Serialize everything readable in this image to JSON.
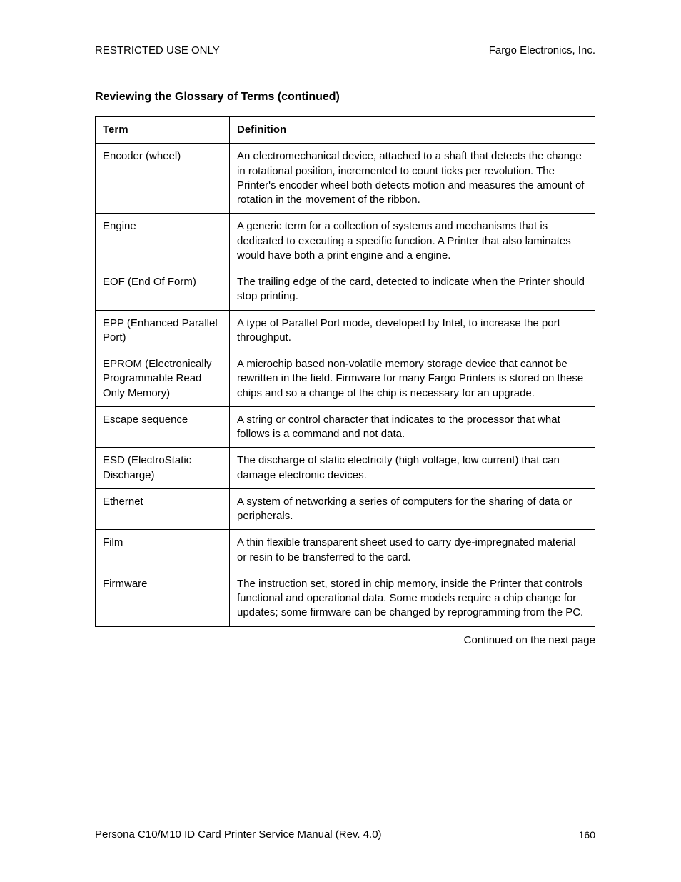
{
  "header": {
    "left": "RESTRICTED USE ONLY",
    "right": "Fargo Electronics, Inc."
  },
  "section_title": "Reviewing the Glossary of Terms (continued)",
  "table": {
    "columns": [
      "Term",
      "Definition"
    ],
    "rows": [
      {
        "term": "Encoder (wheel)",
        "definition": "An electromechanical device, attached to a shaft that detects the change in rotational position, incremented to count ticks per revolution. The Printer's encoder wheel both detects motion and measures the amount of rotation in the movement of the ribbon."
      },
      {
        "term": "Engine",
        "definition": "A generic term for a collection of systems and mechanisms that is dedicated to executing a specific function. A Printer that also laminates would have both a print engine and a engine."
      },
      {
        "term": "EOF (End Of Form)",
        "definition": "The trailing edge of the card, detected to indicate when the Printer should stop printing."
      },
      {
        "term": "EPP (Enhanced Parallel Port)",
        "definition": "A type of Parallel Port mode, developed by Intel, to increase the port throughput."
      },
      {
        "term": "EPROM (Electronically Programmable Read Only Memory)",
        "definition": "A microchip based non-volatile memory storage device that cannot be rewritten in the field. Firmware for many Fargo Printers is stored on these chips and so a change of the chip is necessary for an upgrade."
      },
      {
        "term": "Escape sequence",
        "definition": "A string or control character that indicates to the processor that what follows is a command and not data."
      },
      {
        "term": "ESD (ElectroStatic Discharge)",
        "definition": "The discharge of static electricity (high voltage, low current) that can damage electronic devices."
      },
      {
        "term": "Ethernet",
        "definition": "A system of networking a series of computers for the sharing of data or peripherals."
      },
      {
        "term": "Film",
        "definition": "A thin flexible transparent sheet used to carry dye-impregnated material or resin to be transferred to the card."
      },
      {
        "term": "Firmware",
        "definition": "The instruction set, stored in chip memory, inside the Printer that controls functional and operational data. Some models require a chip change for updates; some firmware can be changed by reprogramming from the PC."
      }
    ]
  },
  "continuation_text": "Continued on the next page",
  "footer": {
    "left": "Persona C10/M10 ID Card Printer Service Manual (Rev. 4.0)",
    "page_number": "160"
  }
}
